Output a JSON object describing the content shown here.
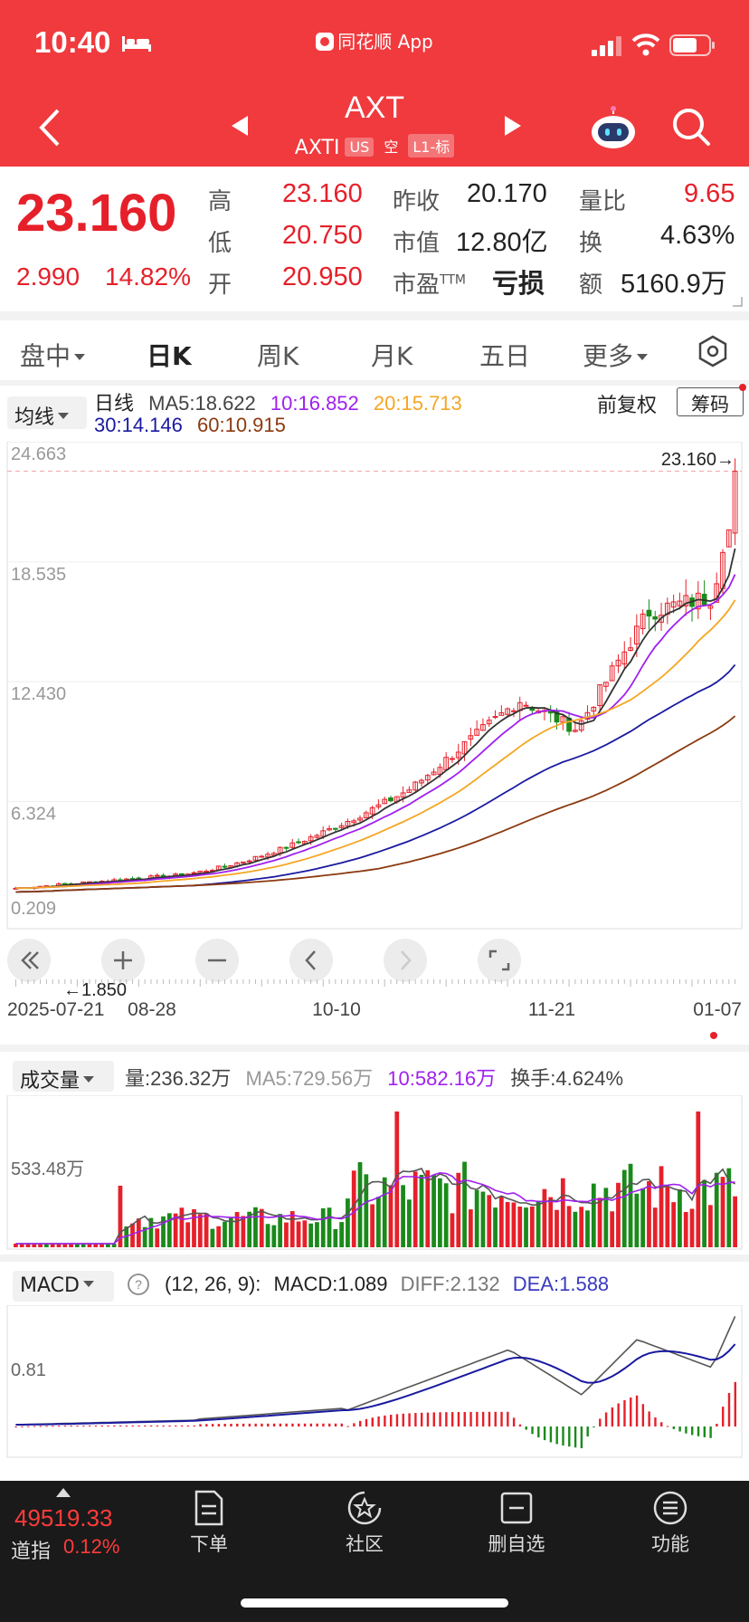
{
  "status_bar": {
    "time": "10:40",
    "carrier_label": "同花顺 App"
  },
  "header": {
    "title": "AXT",
    "ticker": "AXTI",
    "market_tag": "US",
    "short_tag": "空",
    "level_tag": "L1-标"
  },
  "quote": {
    "price": "23.160",
    "change": "2.990",
    "change_pct": "14.82%",
    "labels": {
      "high": "高",
      "low": "低",
      "open": "开",
      "prev_close": "昨收",
      "market_cap": "市值",
      "pe": "市盈",
      "pe_sup": "TTM",
      "vol_ratio": "量比",
      "turnover": "换",
      "amount": "额"
    },
    "values": {
      "high": "23.160",
      "low": "20.750",
      "open": "20.950",
      "prev_close": "20.170",
      "market_cap": "12.80亿",
      "pe": "亏损",
      "vol_ratio": "9.65",
      "turnover": "4.63%",
      "amount": "5160.9万"
    }
  },
  "tabs": [
    {
      "label": "盘中"
    },
    {
      "label": "日K"
    },
    {
      "label": "周K"
    },
    {
      "label": "月K"
    },
    {
      "label": "五日"
    },
    {
      "label": "更多"
    }
  ],
  "ma_legend": {
    "select_label": "均线",
    "period_label": "日线",
    "ma5": "MA5:18.622",
    "ma10": "10:16.852",
    "ma20": "20:15.713",
    "ma30": "30:14.146",
    "ma60": "60:10.915",
    "adjust_label": "前复权",
    "chips_label": "筹码",
    "colors": {
      "ma5": "#333333",
      "ma10": "#a020f0",
      "ma20": "#f5a623",
      "ma30": "#1a1aa0",
      "ma60": "#8b3a0f"
    }
  },
  "kline": {
    "y_labels": [
      "24.663",
      "18.535",
      "12.430",
      "6.324",
      "0.209"
    ],
    "last_price_label": "23.160→",
    "low_marker_label": "←1.850",
    "x_labels": [
      "2025-07-21",
      "08-28",
      "10-10",
      "11-21",
      "01-07"
    ]
  },
  "volume": {
    "select_label": "成交量",
    "vol": "量:236.32万",
    "ma5": "MA5:729.56万",
    "ma10": "10:582.16万",
    "turnover": "换手:4.624%",
    "y_label": "533.48万"
  },
  "macd": {
    "select_label": "MACD",
    "params": "(12, 26, 9):",
    "macd": "MACD:1.089",
    "diff": "DIFF:2.132",
    "dea": "DEA:1.588",
    "y_label": "0.81"
  },
  "bottom_nav": {
    "index_value": "49519.33",
    "index_name": "道指",
    "index_pct": "0.12%",
    "items": [
      {
        "label": "下单"
      },
      {
        "label": "社区"
      },
      {
        "label": "删自选"
      },
      {
        "label": "功能"
      }
    ]
  }
}
